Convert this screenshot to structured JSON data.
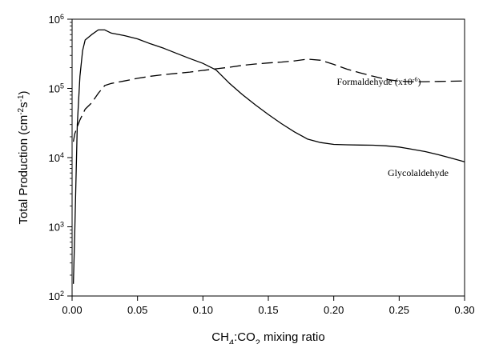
{
  "chart_data": {
    "type": "line",
    "xlabel": {
      "prefix": "CH",
      "sub1": "4",
      "middle": ":CO",
      "sub2": "2",
      "suffix": " mixing ratio"
    },
    "ylabel": {
      "prefix": "Total Production (cm",
      "sup1": "-2",
      "middle": "s",
      "sup2": "-1",
      "suffix": ")"
    },
    "xlim": [
      0,
      0.3
    ],
    "ylim": [
      100,
      1000000
    ],
    "yscale": "log",
    "grid": false,
    "x_ticks": [
      "0.00",
      "0.05",
      "0.10",
      "0.15",
      "0.20",
      "0.25",
      "0.30"
    ],
    "y_ticks": [
      {
        "base": "10",
        "exp": "2"
      },
      {
        "base": "10",
        "exp": "3"
      },
      {
        "base": "10",
        "exp": "4"
      },
      {
        "base": "10",
        "exp": "5"
      },
      {
        "base": "10",
        "exp": "6"
      }
    ],
    "series": [
      {
        "name": "Glycolaldehyde",
        "style": "solid",
        "color": "#000000",
        "x": [
          0.001,
          0.002,
          0.003,
          0.004,
          0.006,
          0.008,
          0.01,
          0.015,
          0.02,
          0.025,
          0.03,
          0.04,
          0.05,
          0.06,
          0.07,
          0.08,
          0.09,
          0.1,
          0.11,
          0.12,
          0.13,
          0.14,
          0.15,
          0.16,
          0.17,
          0.18,
          0.19,
          0.2,
          0.21,
          0.22,
          0.23,
          0.24,
          0.25,
          0.26,
          0.27,
          0.28,
          0.29,
          0.3
        ],
        "y": [
          150,
          800,
          5000,
          30000,
          150000,
          350000,
          500000,
          600000,
          700000,
          700000,
          630000,
          580000,
          520000,
          440000,
          380000,
          320000,
          270000,
          230000,
          185000,
          120000,
          82000,
          58000,
          42000,
          31000,
          23500,
          18500,
          16500,
          15500,
          15300,
          15200,
          15100,
          14800,
          14200,
          13200,
          12200,
          11000,
          9800,
          8700
        ],
        "label": "Glycolaldehyde"
      },
      {
        "name": "Formaldehyde (x10^-6)",
        "style": "dashed",
        "color": "#000000",
        "x": [
          0.001,
          0.002,
          0.004,
          0.006,
          0.008,
          0.01,
          0.015,
          0.02,
          0.025,
          0.03,
          0.04,
          0.05,
          0.06,
          0.07,
          0.08,
          0.09,
          0.1,
          0.11,
          0.12,
          0.13,
          0.14,
          0.15,
          0.16,
          0.17,
          0.18,
          0.19,
          0.2,
          0.21,
          0.22,
          0.23,
          0.24,
          0.25,
          0.26,
          0.27,
          0.28,
          0.29,
          0.3
        ],
        "y": [
          17000,
          22000,
          28000,
          35000,
          42000,
          50000,
          62000,
          85000,
          110000,
          118000,
          128000,
          140000,
          150000,
          158000,
          165000,
          172000,
          182000,
          192000,
          202000,
          215000,
          225000,
          233000,
          240000,
          250000,
          265000,
          255000,
          222000,
          190000,
          168000,
          150000,
          135000,
          127000,
          125000,
          125000,
          126000,
          127000,
          128000
        ],
        "label": {
          "prefix": "Formaldehyde (x10",
          "sup": "-6",
          "suffix": ")"
        }
      }
    ]
  }
}
